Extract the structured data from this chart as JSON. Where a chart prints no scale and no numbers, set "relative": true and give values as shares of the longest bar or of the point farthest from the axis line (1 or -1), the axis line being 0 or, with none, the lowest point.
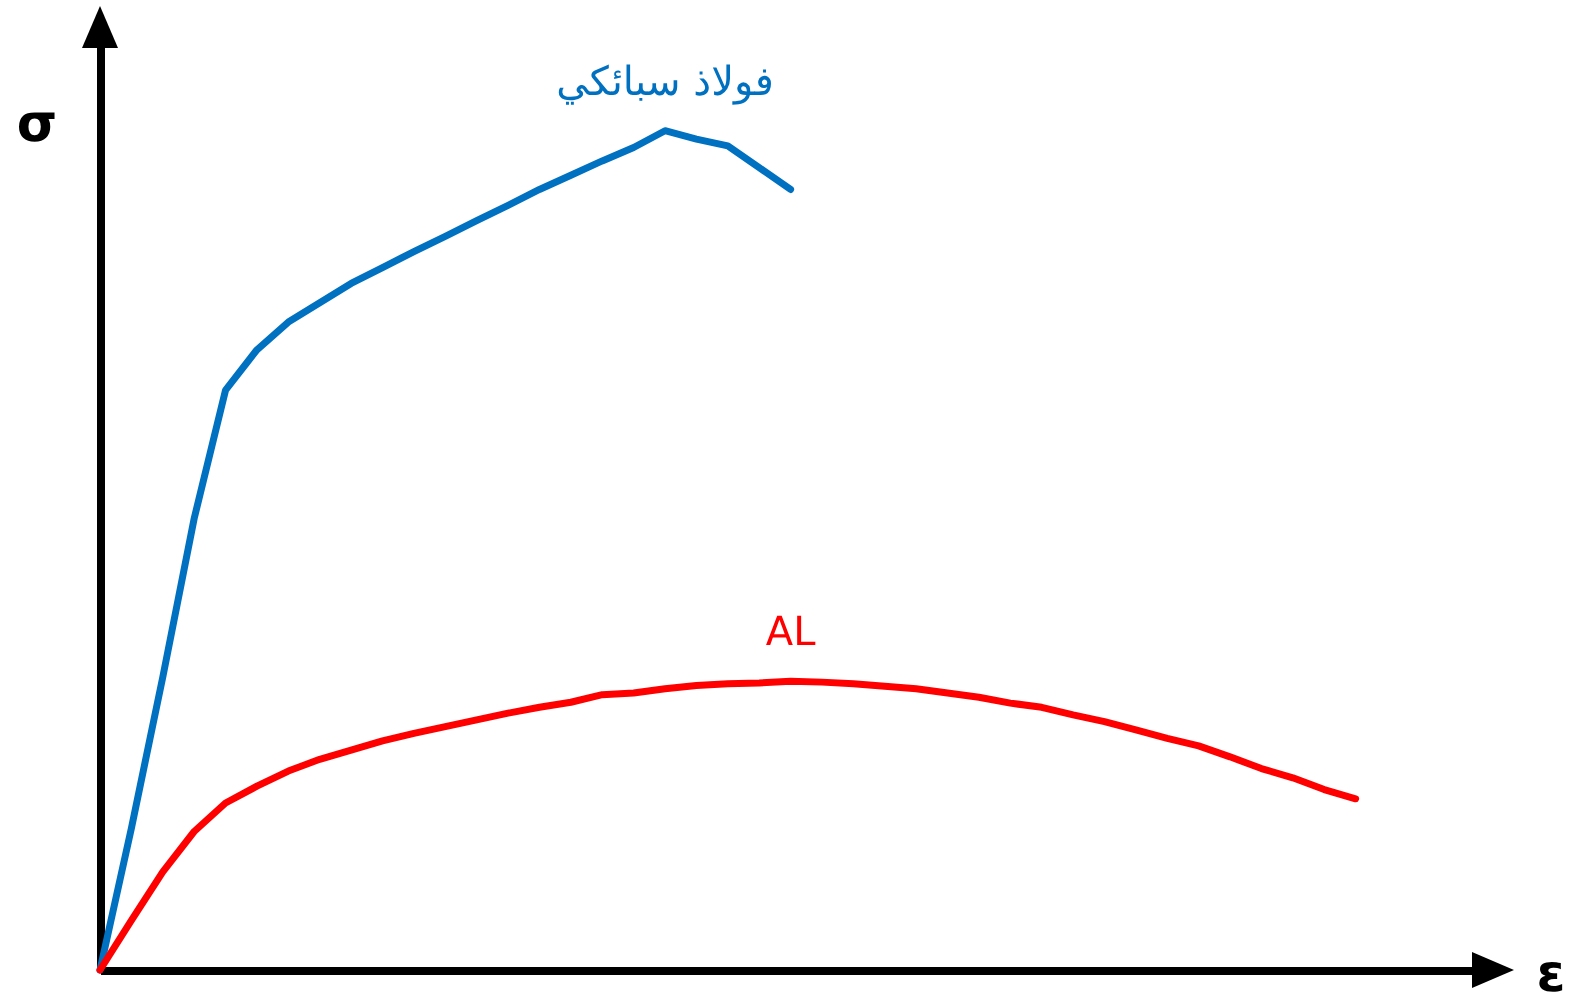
{
  "chart_data": {
    "type": "line",
    "relative": true,
    "xlabel": "ε",
    "ylabel": "σ",
    "categories": [
      null,
      null,
      null,
      null,
      null,
      null,
      null,
      null,
      null,
      null,
      null,
      null,
      null,
      null,
      null,
      null,
      null,
      null,
      null,
      null,
      null,
      null,
      null,
      null,
      null,
      null,
      null,
      null,
      null,
      null,
      null,
      null,
      null,
      null,
      null,
      null,
      null,
      null,
      null,
      null,
      null
    ],
    "series": [
      {
        "name": "فولاذ سبائكي",
        "color": "#0070c0",
        "values": [
          0,
          0.169,
          0.349,
          0.538,
          0.691,
          0.739,
          0.772,
          0.795,
          0.818,
          0.837,
          0.856,
          0.874,
          0.893,
          0.911,
          0.93,
          0.947,
          0.964,
          0.98,
          1,
          0.99,
          0.982,
          0.956,
          0.93,
          null,
          null,
          null,
          null,
          null,
          null,
          null,
          null,
          null,
          null,
          null,
          null,
          null,
          null,
          null,
          null,
          null,
          null
        ]
      },
      {
        "name": "AL",
        "color": "#ff0000",
        "values": [
          0,
          0.059,
          0.117,
          0.165,
          0.199,
          0.219,
          0.237,
          0.251,
          0.262,
          0.273,
          0.282,
          0.29,
          0.298,
          0.306,
          0.313,
          0.319,
          0.328,
          0.33,
          0.335,
          0.339,
          0.341,
          0.342,
          0.344,
          0.343,
          0.341,
          0.338,
          0.335,
          0.33,
          0.325,
          0.318,
          0.313,
          0.304,
          0.296,
          0.286,
          0.276,
          0.267,
          0.254,
          0.24,
          0.229,
          0.215,
          0.204
        ]
      }
    ]
  }
}
